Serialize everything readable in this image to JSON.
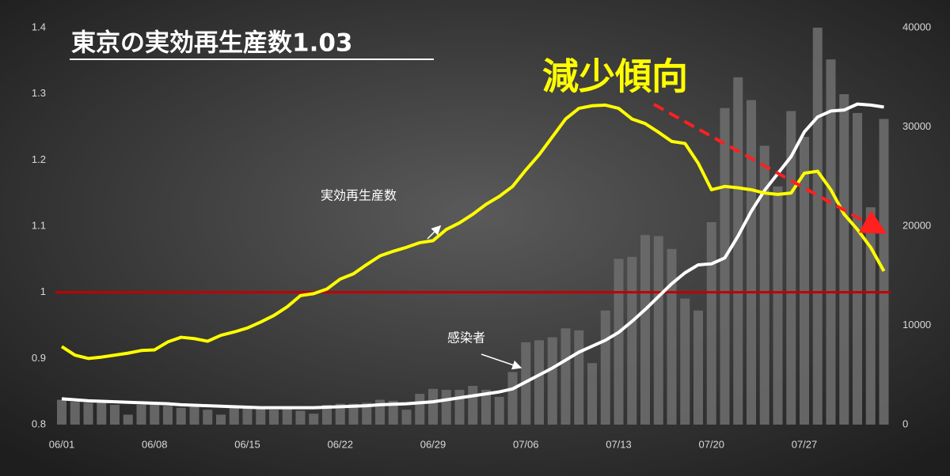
{
  "chart_data": {
    "type": "combo",
    "title": "東京の実効再生産数1.03",
    "annotation": "減少傾向",
    "categories": [
      "06/01",
      null,
      null,
      null,
      null,
      null,
      null,
      "06/08",
      null,
      null,
      null,
      null,
      null,
      null,
      "06/15",
      null,
      null,
      null,
      null,
      null,
      null,
      "06/22",
      null,
      null,
      null,
      null,
      null,
      null,
      "06/29",
      null,
      null,
      null,
      null,
      null,
      null,
      "07/06",
      null,
      null,
      null,
      null,
      null,
      null,
      "07/13",
      null,
      null,
      null,
      null,
      null,
      null,
      "07/20",
      null,
      null,
      null,
      null,
      null,
      null,
      "07/27",
      null,
      null,
      null,
      null,
      null,
      null
    ],
    "ylim": [
      0.8,
      1.4
    ],
    "yticks": [
      0.8,
      0.9,
      1,
      1.1,
      1.2,
      1.3,
      1.4
    ],
    "y2lim": [
      0,
      40000
    ],
    "y2ticks": [
      0,
      10000,
      20000,
      30000,
      40000
    ],
    "reference_line": {
      "value": 1,
      "color": "#c00000"
    },
    "series": [
      {
        "type": "bar",
        "axis": "y2",
        "color": "#6b6b6b",
        "values": [
          2500,
          2300,
          2200,
          2200,
          2000,
          1000,
          2000,
          2100,
          1900,
          1700,
          1800,
          1500,
          1000,
          1700,
          1800,
          1600,
          1500,
          1700,
          1400,
          1100,
          2000,
          2100,
          2100,
          2200,
          2500,
          2400,
          1500,
          3100,
          3600,
          3500,
          3500,
          3900,
          3500,
          2800,
          5300,
          8300,
          8500,
          8800,
          9700,
          9500,
          6200,
          11500,
          16700,
          16900,
          19100,
          19000,
          17700,
          12700,
          11500,
          20400,
          31900,
          35000,
          32700,
          28100,
          24000,
          31600,
          29000,
          40000,
          36800,
          33300,
          31400,
          21900,
          30800
        ]
      },
      {
        "type": "line",
        "axis": "y2",
        "name": "感染者",
        "color": "#ffffff",
        "values": [
          2600,
          2500,
          2400,
          2350,
          2300,
          2250,
          2200,
          2150,
          2100,
          2000,
          1950,
          1900,
          1850,
          1800,
          1750,
          1700,
          1700,
          1700,
          1700,
          1700,
          1750,
          1800,
          1850,
          1900,
          2000,
          2050,
          2100,
          2200,
          2300,
          2500,
          2700,
          2900,
          3100,
          3300,
          3600,
          4300,
          5000,
          5700,
          6500,
          7300,
          7900,
          8500,
          9300,
          10400,
          11600,
          12900,
          14200,
          15300,
          16100,
          16200,
          16800,
          19000,
          21500,
          23600,
          25300,
          27000,
          29500,
          31000,
          31600,
          31700,
          32300,
          32200,
          32000
        ]
      },
      {
        "type": "line",
        "name": "実効再生産数",
        "color": "#ffff00",
        "values": [
          0.918,
          0.905,
          0.9,
          0.902,
          0.905,
          0.908,
          0.912,
          0.913,
          0.925,
          0.932,
          0.93,
          0.926,
          0.935,
          0.94,
          0.946,
          0.955,
          0.965,
          0.978,
          0.995,
          0.998,
          1.005,
          1.02,
          1.028,
          1.042,
          1.055,
          1.062,
          1.068,
          1.075,
          1.078,
          1.095,
          1.105,
          1.118,
          1.133,
          1.145,
          1.16,
          1.185,
          1.208,
          1.235,
          1.262,
          1.278,
          1.282,
          1.283,
          1.278,
          1.262,
          1.255,
          1.242,
          1.228,
          1.225,
          1.195,
          1.155,
          1.16,
          1.158,
          1.155,
          1.15,
          1.148,
          1.15,
          1.18,
          1.183,
          1.155,
          1.118,
          1.095,
          1.068,
          1.032
        ]
      }
    ]
  }
}
